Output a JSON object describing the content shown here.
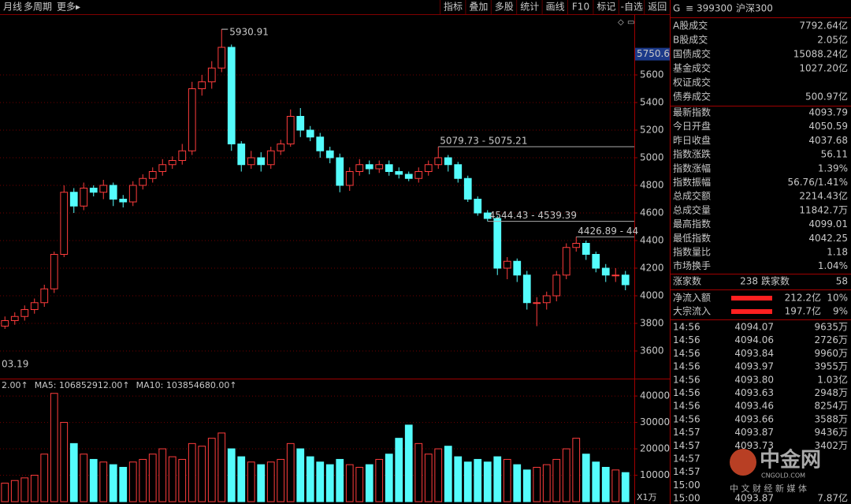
{
  "toolbar": {
    "left": [
      "月线",
      "多周期",
      "更多▸"
    ],
    "right": [
      "指标",
      "叠加",
      "多股",
      "统计",
      "画线",
      "F10",
      "标记",
      "-自选",
      "返回"
    ]
  },
  "chart_data": {
    "type": "candlestick",
    "up_color": "#ff3c3c",
    "down_color": "#54fcfc",
    "open": [
      3780,
      3820,
      3850,
      3900,
      3950,
      4050,
      4300,
      4750,
      4650,
      4780,
      4750,
      4800,
      4700,
      4680,
      4800,
      4850,
      4900,
      4950,
      4980,
      5050,
      5500,
      5550,
      5650,
      5800,
      5100,
      4950,
      5000,
      4950,
      5050,
      5100,
      5300,
      5200,
      5150,
      5050,
      5000,
      4800,
      4900,
      4950,
      4920,
      4950,
      4900,
      4880,
      4850,
      4900,
      4950,
      5000,
      4950,
      4850,
      4700,
      4600,
      4560,
      4200,
      4250,
      4150,
      3950,
      3950,
      4000,
      4150,
      4350,
      4380,
      4300,
      4200,
      4150,
      4150
    ],
    "high": [
      3850,
      3880,
      3930,
      3980,
      4080,
      4320,
      4800,
      4780,
      4820,
      4800,
      4840,
      4820,
      4730,
      4830,
      4880,
      4930,
      4990,
      5010,
      5100,
      5550,
      5600,
      5700,
      5930.91,
      5820,
      5120,
      5050,
      5040,
      5080,
      5130,
      5350,
      5360,
      5230,
      5180,
      5080,
      5030,
      4930,
      4990,
      4980,
      4980,
      4980,
      4930,
      4900,
      4930,
      4980,
      5079.73,
      5020,
      4970,
      4870,
      4720,
      4620,
      4580,
      4280,
      4270,
      4180,
      3990,
      4030,
      4180,
      4380,
      4426.89,
      4400,
      4320,
      4230,
      4200,
      4180
    ],
    "low": [
      3760,
      3790,
      3820,
      3870,
      3920,
      4020,
      4280,
      4600,
      4620,
      4720,
      4700,
      4650,
      4640,
      4650,
      4770,
      4820,
      4870,
      4920,
      4950,
      5020,
      5450,
      5500,
      5620,
      5050,
      4900,
      4920,
      4900,
      4920,
      5020,
      5080,
      5150,
      5120,
      5000,
      4960,
      4750,
      4760,
      4870,
      4880,
      4890,
      4870,
      4850,
      4830,
      4820,
      4870,
      4920,
      4900,
      4820,
      4680,
      4580,
      4539.39,
      4150,
      4120,
      4100,
      3900,
      3780,
      3900,
      3960,
      4120,
      4320,
      4260,
      4170,
      4100,
      4100,
      4040
    ],
    "close": [
      3820,
      3850,
      3900,
      3950,
      4050,
      4300,
      4750,
      4650,
      4780,
      4750,
      4800,
      4700,
      4680,
      4800,
      4850,
      4900,
      4950,
      4980,
      5050,
      5500,
      5550,
      5650,
      5800,
      5100,
      4950,
      5000,
      4950,
      5050,
      5100,
      5300,
      5200,
      5150,
      5050,
      5000,
      4800,
      4900,
      4950,
      4920,
      4950,
      4900,
      4880,
      4850,
      4900,
      4950,
      5000,
      4950,
      4850,
      4700,
      4600,
      4560,
      4200,
      4250,
      4150,
      3950,
      3950,
      4000,
      4150,
      4350,
      4380,
      4300,
      4200,
      4150,
      4150,
      4080
    ],
    "ylim": [
      3400,
      6040
    ],
    "yticks": [
      3600,
      3800,
      4000,
      4200,
      4400,
      4600,
      4800,
      5000,
      5200,
      5400,
      5600
    ],
    "grid": true,
    "cursor_value": 5750.6,
    "annotations": [
      "5079.73 - 5075.21",
      "4544.43 - 4539.39",
      "4426.89 - 44"
    ],
    "x_label": "03.19",
    "volume": [
      7000,
      8000,
      9000,
      10000,
      18000,
      41000,
      30000,
      22000,
      18000,
      16000,
      15000,
      14000,
      13000,
      15000,
      16000,
      18000,
      20000,
      17000,
      16000,
      22000,
      21000,
      24000,
      26000,
      20000,
      17000,
      15000,
      14000,
      15000,
      16000,
      22000,
      20000,
      17000,
      15000,
      14000,
      16000,
      14000,
      13000,
      14000,
      16000,
      18000,
      24000,
      29000,
      22000,
      18000,
      20000,
      21000,
      17000,
      15000,
      16000,
      15000,
      17000,
      16000,
      14000,
      12000,
      13000,
      14000,
      16000,
      20000,
      24000,
      18000,
      15000,
      13000,
      12000,
      11000
    ],
    "vol_ylim": [
      0,
      46000
    ],
    "vol_yticks": [
      10000,
      20000,
      30000,
      40000
    ],
    "vol_unit": "X1万",
    "vol_header": [
      {
        "text": "2.00↑",
        "color": "#ffffff"
      },
      {
        "text": "MA5: 106852912.00↑",
        "color": "#ffff54"
      },
      {
        "text": "MA10: 103854680.00↑",
        "color": "#ff54ff"
      }
    ]
  },
  "panel": {
    "flag": "G",
    "menu": "≡",
    "code": "399300",
    "name": "沪深300",
    "market": [
      {
        "label": "A股成交",
        "value": "7792.64亿"
      },
      {
        "label": "B股成交",
        "value": "2.05亿"
      },
      {
        "label": "国债成交",
        "value": "15088.24亿"
      },
      {
        "label": "基金成交",
        "value": "1027.20亿"
      },
      {
        "label": "权证成交"
      },
      {
        "label": "债券成交",
        "value": "500.97亿"
      }
    ],
    "index": [
      {
        "label": "最新指数",
        "value": "4093.79",
        "color": "#ff3c3c"
      },
      {
        "label": "今日开盘",
        "value": "4050.59",
        "color": "#ff3c3c"
      },
      {
        "label": "昨日收盘",
        "value": "4037.68",
        "color": "#ffffff"
      },
      {
        "label": "指数涨跌",
        "value": "56.11",
        "color": "#ff3c3c"
      },
      {
        "label": "指数涨幅",
        "value": "1.39%",
        "color": "#ff3c3c"
      },
      {
        "label": "指数振幅",
        "value": "56.76/1.41%",
        "color": "#ffffff"
      },
      {
        "label": "总成交额",
        "value": "2214.43亿",
        "color": "#ffff54"
      },
      {
        "label": "总成交量",
        "value": "11842.7万",
        "color": "#ffff54"
      },
      {
        "label": "最高指数",
        "value": "4099.01",
        "color": "#ff3c3c"
      },
      {
        "label": "最低指数",
        "value": "4042.25",
        "color": "#ff3c3c"
      },
      {
        "label": "指数量比",
        "value": "1.18",
        "color": "#ff3c3c"
      },
      {
        "label": "市场换手",
        "value": "1.04%",
        "color": "#ffffff"
      }
    ],
    "breadth": {
      "up_label": "涨家数",
      "up": "238",
      "down_label": "跌家数",
      "down": "58"
    },
    "flows": [
      {
        "label": "净流入额",
        "value": "212.2亿",
        "pct": "10%"
      },
      {
        "label": "大宗流入",
        "value": "197.7亿",
        "pct": "9%"
      }
    ],
    "trades": [
      {
        "time": "14:56",
        "price": "4094.07",
        "vol": "9635万"
      },
      {
        "time": "14:56",
        "price": "4094.06",
        "vol": "2726万"
      },
      {
        "time": "14:56",
        "price": "4093.84",
        "vol": "9960万"
      },
      {
        "time": "14:56",
        "price": "4093.97",
        "vol": "3955万"
      },
      {
        "time": "14:56",
        "price": "4093.80",
        "vol": "1.03亿"
      },
      {
        "time": "14:56",
        "price": "4093.63",
        "vol": "2948万"
      },
      {
        "time": "14:56",
        "price": "4093.46",
        "vol": "8254万"
      },
      {
        "time": "14:56",
        "price": "4093.66",
        "vol": "3588万"
      },
      {
        "time": "14:57",
        "price": "4093.87",
        "vol": "9436万"
      },
      {
        "time": "14:57",
        "price": "4093.73",
        "vol": "3402万"
      },
      {
        "time": "14:57"
      },
      {
        "time": "14:57"
      },
      {
        "time": "15:00"
      },
      {
        "time": "15:00",
        "price": "4093.87",
        "vol": "7.87亿"
      }
    ]
  },
  "watermark": {
    "brand": "中金网",
    "site": "CNGOLD.COM",
    "slogan": "中 文 财 经 新 媒 体"
  }
}
